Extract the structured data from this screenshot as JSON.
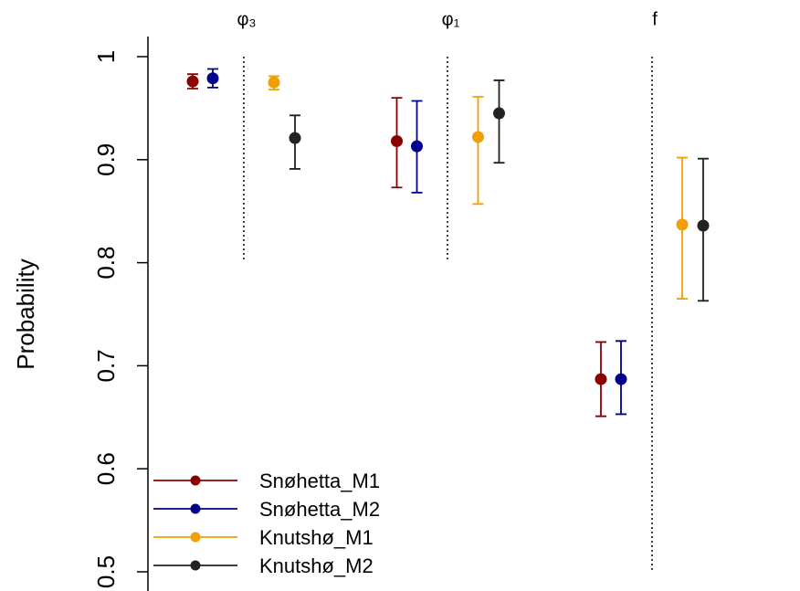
{
  "chart_data": {
    "type": "errorbar",
    "ylabel": "Probability",
    "categories": [
      "φ₃",
      "φ₁",
      "f"
    ],
    "ylim": [
      0.5,
      1.0
    ],
    "yticks": [
      0.5,
      0.6,
      0.7,
      0.8,
      0.9,
      1.0
    ],
    "series": [
      {
        "name": "Snøhetta_M1",
        "color": "#8b0000",
        "values": [
          0.976,
          0.918,
          0.687
        ],
        "lower": [
          0.969,
          0.873,
          0.651
        ],
        "upper": [
          0.983,
          0.96,
          0.723
        ]
      },
      {
        "name": "Snøhetta_M2",
        "color": "#00008b",
        "values": [
          0.979,
          0.913,
          0.687
        ],
        "lower": [
          0.97,
          0.868,
          0.653
        ],
        "upper": [
          0.988,
          0.957,
          0.724
        ]
      },
      {
        "name": "Knutshø_M1",
        "color": "#f29f05",
        "values": [
          0.975,
          0.922,
          0.837
        ],
        "lower": [
          0.968,
          0.857,
          0.765
        ],
        "upper": [
          0.981,
          0.961,
          0.902
        ]
      },
      {
        "name": "Knutshø_M2",
        "color": "#222222",
        "values": [
          0.921,
          0.945,
          0.836
        ],
        "lower": [
          0.891,
          0.897,
          0.763
        ],
        "upper": [
          0.943,
          0.977,
          0.901
        ]
      }
    ]
  }
}
